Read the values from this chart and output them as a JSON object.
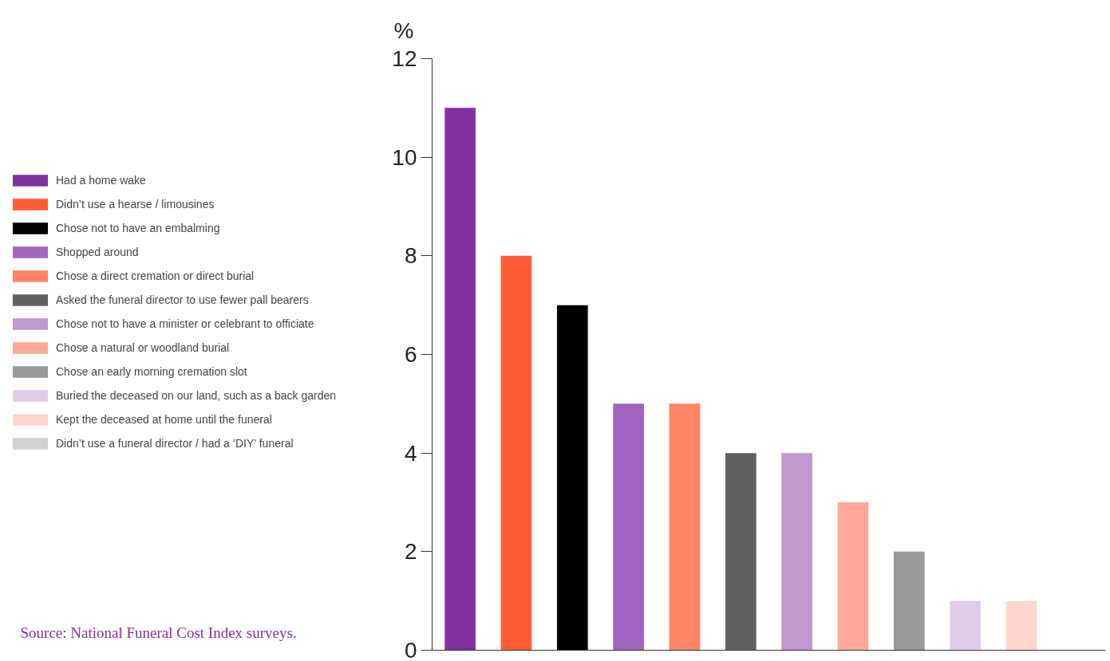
{
  "chart_data": {
    "type": "bar",
    "ylabel": "%",
    "categories": [
      null,
      null,
      null,
      null,
      null,
      null,
      null,
      null,
      null,
      null,
      null,
      null
    ],
    "series": [
      {
        "name": "Had a home wake",
        "color": "#8230a0",
        "values": [
          11,
          null,
          null,
          null,
          null,
          null,
          null,
          null,
          null,
          null,
          null,
          null
        ]
      },
      {
        "name": "Didn’t use a hearse / limousines",
        "color": "#ff5c35",
        "values": [
          null,
          8,
          null,
          null,
          null,
          null,
          null,
          null,
          null,
          null,
          null,
          null
        ]
      },
      {
        "name": "Chose not to have an embalming",
        "color": "#000000",
        "values": [
          null,
          null,
          7,
          null,
          null,
          null,
          null,
          null,
          null,
          null,
          null,
          null
        ]
      },
      {
        "name": "Shopped around",
        "color": "#a066c0",
        "values": [
          null,
          null,
          null,
          5,
          null,
          null,
          null,
          null,
          null,
          null,
          null,
          null
        ]
      },
      {
        "name": "Chose a direct cremation or direct burial",
        "color": "#ff8566",
        "values": [
          null,
          null,
          null,
          null,
          5,
          null,
          null,
          null,
          null,
          null,
          null,
          null
        ]
      },
      {
        "name": "Asked the funeral director to use fewer pall bearers",
        "color": "#606060",
        "values": [
          null,
          null,
          null,
          null,
          null,
          4,
          null,
          null,
          null,
          null,
          null,
          null
        ]
      },
      {
        "name": "Chose not to have a minister or celebrant to officiate",
        "color": "#c098d0",
        "values": [
          null,
          null,
          null,
          null,
          null,
          null,
          4,
          null,
          null,
          null,
          null,
          null
        ]
      },
      {
        "name": "Chose a natural or woodland burial",
        "color": "#ffaa99",
        "values": [
          null,
          null,
          null,
          null,
          null,
          null,
          null,
          3,
          null,
          null,
          null,
          null
        ]
      },
      {
        "name": "Chose an early morning cremation slot",
        "color": "#999999",
        "values": [
          null,
          null,
          null,
          null,
          null,
          null,
          null,
          null,
          2,
          null,
          null,
          null
        ]
      },
      {
        "name": "Buried the deceased on our land, such as a back garden",
        "color": "#e0cce8",
        "values": [
          null,
          null,
          null,
          null,
          null,
          null,
          null,
          null,
          null,
          1,
          null,
          null
        ]
      },
      {
        "name": "Kept the deceased at home until the funeral",
        "color": "#ffd5cc",
        "values": [
          null,
          null,
          null,
          null,
          null,
          null,
          null,
          null,
          null,
          null,
          1,
          null
        ]
      },
      {
        "name": "Didn’t use a funeral director / had a ‘DIY’ funeral",
        "color": "#d0d0d0",
        "values": [
          null,
          null,
          null,
          null,
          null,
          null,
          null,
          null,
          null,
          null,
          null,
          0
        ]
      }
    ],
    "ylim": [
      0,
      12
    ],
    "yticks": [
      0,
      2,
      4,
      6,
      8,
      10,
      12
    ],
    "tick_labels": "y",
    "grid": false,
    "legend": "left",
    "annotations": [
      "Source: National Funeral Cost Index surveys."
    ]
  }
}
